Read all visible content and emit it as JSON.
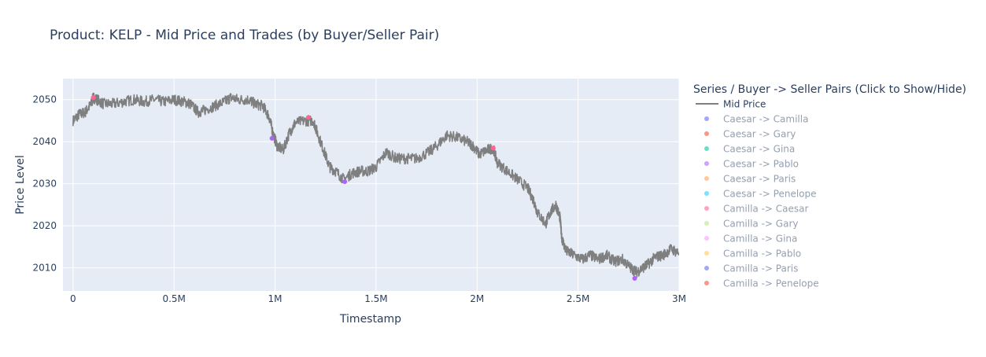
{
  "chart_data": {
    "type": "line",
    "title": "Product: KELP - Mid Price and Trades (by Buyer/Seller Pair)",
    "xlabel": "Timestamp",
    "ylabel": "Price Level",
    "xlim": [
      -50000,
      3000000
    ],
    "ylim": [
      2004.5,
      2055
    ],
    "x_ticks": [
      {
        "value": 0,
        "label": "0"
      },
      {
        "value": 500000,
        "label": "0.5M"
      },
      {
        "value": 1000000,
        "label": "1M"
      },
      {
        "value": 1500000,
        "label": "1.5M"
      },
      {
        "value": 2000000,
        "label": "2M"
      },
      {
        "value": 2500000,
        "label": "2.5M"
      },
      {
        "value": 3000000,
        "label": "3M"
      }
    ],
    "y_ticks": [
      {
        "value": 2010,
        "label": "2010"
      },
      {
        "value": 2020,
        "label": "2020"
      },
      {
        "value": 2030,
        "label": "2030"
      },
      {
        "value": 2040,
        "label": "2040"
      },
      {
        "value": 2050,
        "label": "2050"
      }
    ],
    "grid": true,
    "legend_title": "Series / Buyer -> Seller Pairs (Click to Show/Hide)",
    "legend_position": "right",
    "series": [
      {
        "name": "Mid Price",
        "kind": "line",
        "color": "#7f7f7f",
        "points": [
          [
            0,
            2045
          ],
          [
            30000,
            2046.5
          ],
          [
            60000,
            2047
          ],
          [
            90000,
            2049
          ],
          [
            100000,
            2050.5
          ],
          [
            120000,
            2050
          ],
          [
            150000,
            2049
          ],
          [
            200000,
            2049
          ],
          [
            250000,
            2049.5
          ],
          [
            300000,
            2050
          ],
          [
            350000,
            2049.5
          ],
          [
            400000,
            2050
          ],
          [
            450000,
            2049.5
          ],
          [
            500000,
            2050
          ],
          [
            550000,
            2049.5
          ],
          [
            580000,
            2049
          ],
          [
            620000,
            2047
          ],
          [
            650000,
            2047.5
          ],
          [
            700000,
            2048.5
          ],
          [
            750000,
            2049.5
          ],
          [
            780000,
            2050.5
          ],
          [
            820000,
            2050
          ],
          [
            870000,
            2050
          ],
          [
            900000,
            2049
          ],
          [
            940000,
            2048.5
          ],
          [
            970000,
            2046
          ],
          [
            990000,
            2042
          ],
          [
            1010000,
            2039
          ],
          [
            1040000,
            2038
          ],
          [
            1070000,
            2042
          ],
          [
            1100000,
            2044.5
          ],
          [
            1150000,
            2045
          ],
          [
            1190000,
            2045
          ],
          [
            1210000,
            2042
          ],
          [
            1240000,
            2038
          ],
          [
            1270000,
            2034
          ],
          [
            1300000,
            2033
          ],
          [
            1340000,
            2031
          ],
          [
            1380000,
            2032.5
          ],
          [
            1420000,
            2033
          ],
          [
            1460000,
            2033
          ],
          [
            1500000,
            2034
          ],
          [
            1550000,
            2037.5
          ],
          [
            1600000,
            2036
          ],
          [
            1650000,
            2036
          ],
          [
            1700000,
            2036
          ],
          [
            1760000,
            2037.5
          ],
          [
            1800000,
            2039
          ],
          [
            1850000,
            2041.5
          ],
          [
            1900000,
            2041
          ],
          [
            1950000,
            2040
          ],
          [
            1980000,
            2039
          ],
          [
            2010000,
            2037
          ],
          [
            2050000,
            2038
          ],
          [
            2080000,
            2038.5
          ],
          [
            2100000,
            2035
          ],
          [
            2150000,
            2033
          ],
          [
            2200000,
            2031
          ],
          [
            2250000,
            2029
          ],
          [
            2280000,
            2026
          ],
          [
            2300000,
            2023
          ],
          [
            2340000,
            2020.5
          ],
          [
            2360000,
            2023
          ],
          [
            2390000,
            2025
          ],
          [
            2410000,
            2022
          ],
          [
            2420000,
            2017
          ],
          [
            2440000,
            2014
          ],
          [
            2480000,
            2013
          ],
          [
            2520000,
            2012
          ],
          [
            2560000,
            2013
          ],
          [
            2600000,
            2012
          ],
          [
            2640000,
            2013
          ],
          [
            2680000,
            2011.5
          ],
          [
            2720000,
            2012
          ],
          [
            2760000,
            2010
          ],
          [
            2790000,
            2009
          ],
          [
            2820000,
            2010
          ],
          [
            2850000,
            2011
          ],
          [
            2880000,
            2012.5
          ],
          [
            2920000,
            2013
          ],
          [
            2960000,
            2014.5
          ],
          [
            3000000,
            2013.5
          ]
        ]
      },
      {
        "name": "Caesar -> Camilla",
        "kind": "markers",
        "color": "#636efa",
        "points": []
      },
      {
        "name": "Caesar -> Gary",
        "kind": "markers",
        "color": "#EF553B",
        "points": []
      },
      {
        "name": "Caesar -> Gina",
        "kind": "markers",
        "color": "#00cc96",
        "points": []
      },
      {
        "name": "Caesar -> Pablo",
        "kind": "markers",
        "color": "#ab63fa",
        "points": [
          [
            985000,
            2040.8
          ],
          [
            1345000,
            2030.5
          ],
          [
            2780000,
            2007.5
          ]
        ]
      },
      {
        "name": "Caesar -> Paris",
        "kind": "markers",
        "color": "#FFA15A",
        "points": []
      },
      {
        "name": "Caesar -> Penelope",
        "kind": "markers",
        "color": "#19d3f3",
        "points": []
      },
      {
        "name": "Camilla -> Caesar",
        "kind": "markers",
        "color": "#FF6692",
        "points": [
          [
            100000,
            2050.5
          ],
          [
            1165000,
            2045.8
          ],
          [
            2080000,
            2038.5
          ]
        ]
      },
      {
        "name": "Camilla -> Gary",
        "kind": "markers",
        "color": "#B6E880",
        "points": []
      },
      {
        "name": "Camilla -> Gina",
        "kind": "markers",
        "color": "#FF97FF",
        "points": []
      },
      {
        "name": "Camilla -> Pablo",
        "kind": "markers",
        "color": "#FECB52",
        "points": []
      },
      {
        "name": "Camilla -> Paris",
        "kind": "markers",
        "color": "#636efa",
        "points": []
      },
      {
        "name": "Camilla -> Penelope",
        "kind": "markers",
        "color": "#EF553B",
        "points": []
      }
    ]
  }
}
